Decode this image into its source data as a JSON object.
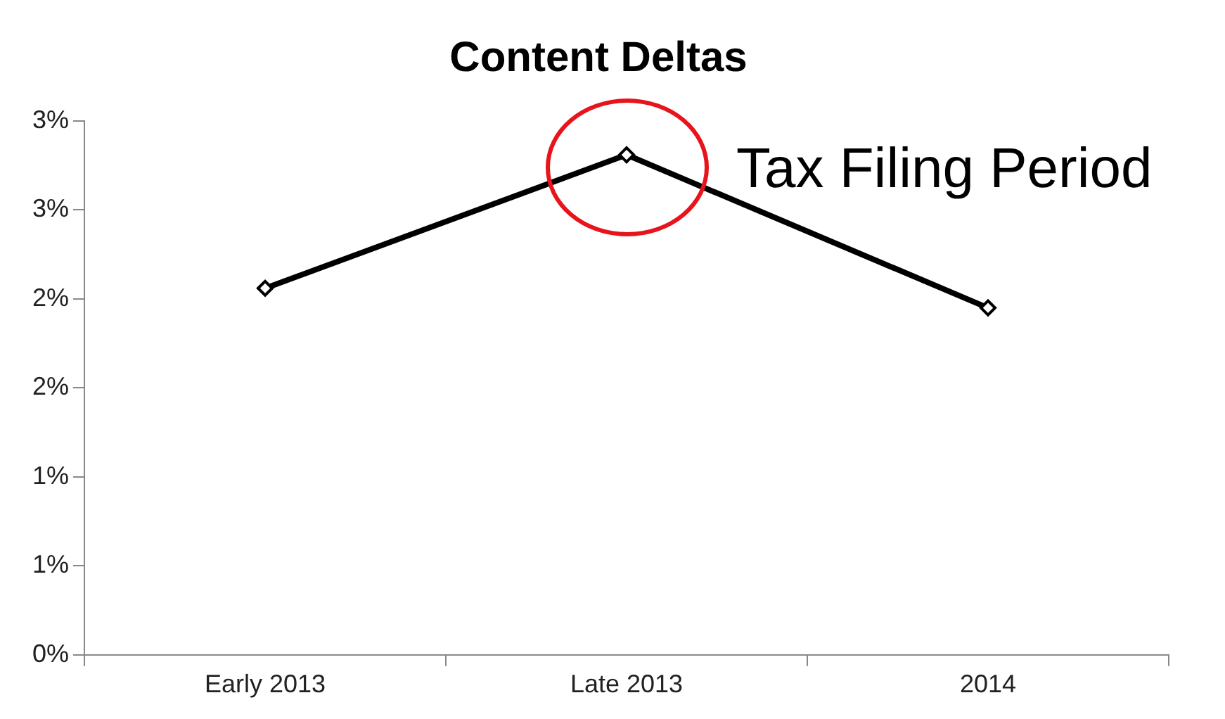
{
  "chart_data": {
    "type": "line",
    "title": "Content Deltas",
    "categories": [
      "Early 2013",
      "Late 2013",
      "2014"
    ],
    "series": [
      {
        "color": "#000000",
        "values": [
          2.06,
          2.81,
          1.95
        ]
      }
    ],
    "ylim": [
      0,
      3
    ],
    "yticks": [
      {
        "value": 0,
        "label": "0%"
      },
      {
        "value": 0.5,
        "label": "1%"
      },
      {
        "value": 1,
        "label": "1%"
      },
      {
        "value": 1.5,
        "label": "2%"
      },
      {
        "value": 2,
        "label": "2%"
      },
      {
        "value": 2.5,
        "label": "3%"
      },
      {
        "value": 3,
        "label": "3%"
      }
    ],
    "annotations": [
      {
        "text": "Tax Filing Period",
        "x": "Late 2013",
        "y": 2.81
      }
    ],
    "grid": false,
    "legend": false,
    "marker": "diamond",
    "line_style": "solid"
  }
}
